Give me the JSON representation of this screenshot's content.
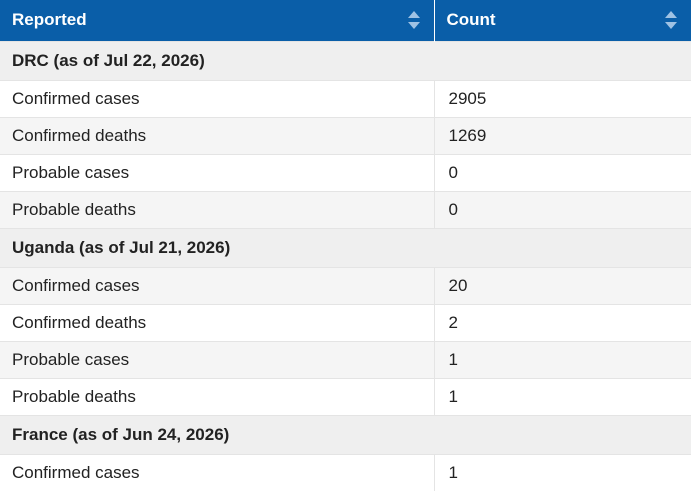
{
  "columns": {
    "reported": "Reported",
    "count": "Count"
  },
  "groups": [
    {
      "title": "DRC (as of Jul 22, 2026)",
      "rows": [
        {
          "label": "Confirmed cases",
          "count": "2905"
        },
        {
          "label": "Confirmed deaths",
          "count": "1269"
        },
        {
          "label": "Probable cases",
          "count": "0"
        },
        {
          "label": "Probable deaths",
          "count": "0"
        }
      ]
    },
    {
      "title": "Uganda (as of Jul 21, 2026)",
      "rows": [
        {
          "label": "Confirmed cases",
          "count": "20"
        },
        {
          "label": "Confirmed deaths",
          "count": "2"
        },
        {
          "label": "Probable cases",
          "count": "1"
        },
        {
          "label": "Probable deaths",
          "count": "1"
        }
      ]
    },
    {
      "title": "France (as of Jun 24, 2026)",
      "rows": [
        {
          "label": "Confirmed cases",
          "count": "1"
        }
      ]
    }
  ]
}
